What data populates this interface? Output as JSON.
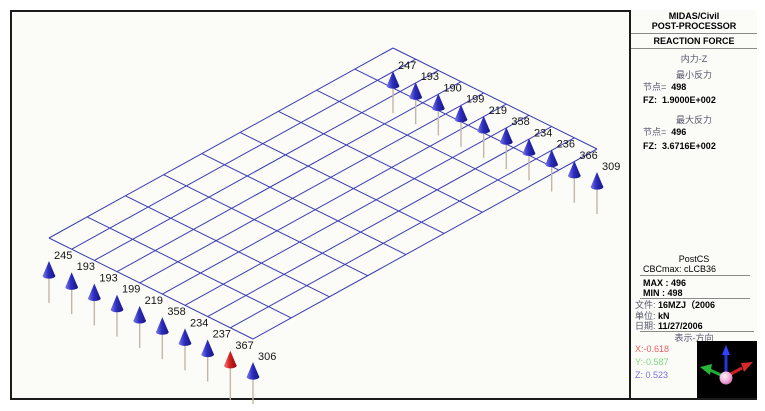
{
  "header": {
    "app_line1": "MIDAS/Civil",
    "app_line2": "POST-PROCESSOR",
    "mode_title": "REACTION FORCE"
  },
  "results": {
    "component": "内力-Z",
    "min_title": "最小反力",
    "min_node_label": "节点=",
    "min_node_value": "498",
    "min_fz_label": "FZ:",
    "min_fz_value": "1.9000E+002",
    "max_title": "最大反力",
    "max_node_label": "节点=",
    "max_node_value": "496",
    "max_fz_label": "FZ:",
    "max_fz_value": "3.6716E+002"
  },
  "footer": {
    "postcs": "PostCS",
    "cbcmax": "CBCmax: cLCB36",
    "max_label": "MAX :",
    "max_value": "496",
    "min_label": "MIN :",
    "min_value": "498",
    "file_label": "文件:",
    "file_value": "16MZJ（2006",
    "unit_label": "单位:",
    "unit_value": "kN",
    "date_label": "日期:",
    "date_value": "11/27/2006",
    "direction_title": "表示-方向",
    "x_value": "X:-0.618",
    "y_value": "Y:-0.587",
    "z_value": "Z: 0.523",
    "x_color": "#e86060",
    "y_color": "#7ddc7d",
    "z_color": "#7a70dc"
  },
  "chart_data": {
    "type": "reaction-force-mesh",
    "title": "REACTION FORCE (FZ)",
    "unit": "kN",
    "mesh": {
      "corners": {
        "n": [
          393,
          48
        ],
        "e": [
          597,
          149
        ],
        "s": [
          253,
          339
        ],
        "w": [
          49,
          238
        ]
      },
      "cells_short_edge": 9,
      "cells_long_edge": 9,
      "line_color": "#3b3bb2"
    },
    "top_edge_reactions": [
      247,
      193,
      190,
      199,
      219,
      358,
      234,
      236,
      366,
      309
    ],
    "bottom_edge_reactions": [
      245,
      193,
      193,
      199,
      219,
      358,
      234,
      237,
      367,
      306
    ],
    "max_arrow": {
      "edge": "bottom",
      "index": 8,
      "value": 367
    },
    "style": {
      "arrow_blue_light": "#7a7ae8",
      "arrow_blue": "#2d2dc0",
      "arrow_blue_dark": "#17177e",
      "arrow_red_light": "#f08080",
      "arrow_red": "#d42020",
      "arrow_red_dark": "#8a0f0f",
      "stem_color": "#c0b8a8",
      "label_color": "#151515",
      "tip_gap": 23,
      "cone_h": 15,
      "cone_w": 6.3,
      "stem_len": 27,
      "label_dx": 5,
      "label_dy": 21
    }
  }
}
